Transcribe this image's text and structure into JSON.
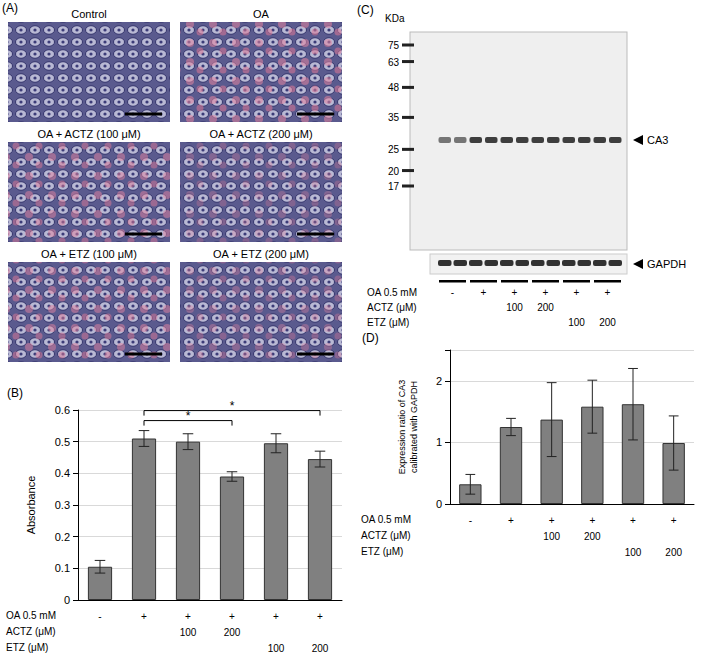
{
  "panel_a": {
    "title": "(A)",
    "images": [
      "Control",
      "OA",
      "OA + ACTZ (100 μM)",
      "OA + ACTZ (200 μM)",
      "OA + ETZ (100 μM)",
      "OA + ETZ (200 μM)"
    ]
  },
  "panel_c": {
    "title": "(C)",
    "unit": "KDa",
    "markers": [
      75,
      63,
      48,
      35,
      25,
      20,
      17
    ],
    "bands": [
      "CA3",
      "GAPDH"
    ],
    "conditions": [
      {
        "label": "OA 0.5 mM",
        "values": [
          "-",
          "+",
          "+",
          "+",
          "+",
          "+"
        ]
      },
      {
        "label": "ACTZ (μM)",
        "values": [
          null,
          null,
          "100",
          "200",
          null,
          null
        ]
      },
      {
        "label": "ETZ (μM)",
        "values": [
          null,
          null,
          null,
          null,
          "100",
          "200"
        ]
      }
    ]
  },
  "chart_data": [
    {
      "type": "bar",
      "title": "(B)",
      "y_label": "Absorbance",
      "categories": [
        null,
        null,
        null,
        null,
        null,
        null
      ],
      "values": [
        0.105,
        0.51,
        0.5,
        0.39,
        0.495,
        0.445
      ],
      "errors": [
        0.02,
        0.025,
        0.025,
        0.015,
        0.03,
        0.025
      ],
      "color": "#808080",
      "ylim": [
        0,
        0.6
      ],
      "yticks": [
        0,
        0.1,
        0.2,
        0.3,
        0.4,
        0.5,
        0.6
      ],
      "grid": true,
      "tick_labels": "y",
      "annotations": [
        {
          "from": 1,
          "to": 3,
          "text": "*"
        },
        {
          "from": 1,
          "to": 5,
          "text": "*"
        }
      ],
      "conditions": [
        {
          "label": "OA 0.5 mM",
          "values": [
            "-",
            "+",
            "+",
            "+",
            "+",
            "+"
          ]
        },
        {
          "label": "ACTZ (μM)",
          "values": [
            null,
            null,
            "100",
            "200",
            null,
            null
          ]
        },
        {
          "label": "ETZ (μM)",
          "values": [
            null,
            null,
            null,
            null,
            "100",
            "200"
          ]
        }
      ]
    },
    {
      "type": "bar",
      "title": "(D)",
      "y_label": "Expression ratio of CA3\ncalibrated with GAPDH",
      "categories": [
        null,
        null,
        null,
        null,
        null,
        null
      ],
      "values": [
        0.32,
        1.25,
        1.37,
        1.58,
        1.62,
        0.99
      ],
      "errors": [
        0.16,
        0.14,
        0.6,
        0.43,
        0.58,
        0.44
      ],
      "color": "#808080",
      "ylim": [
        0,
        2.5
      ],
      "yticks": [
        0,
        1,
        2
      ],
      "grid": true,
      "tick_labels": "y",
      "conditions": [
        {
          "label": "OA 0.5 mM",
          "values": [
            "-",
            "+",
            "+",
            "+",
            "+",
            "+"
          ]
        },
        {
          "label": "ACTZ (μM)",
          "values": [
            null,
            null,
            "100",
            "200",
            null,
            null
          ]
        },
        {
          "label": "ETZ (μM)",
          "values": [
            null,
            null,
            null,
            null,
            "100",
            "200"
          ]
        }
      ]
    }
  ]
}
